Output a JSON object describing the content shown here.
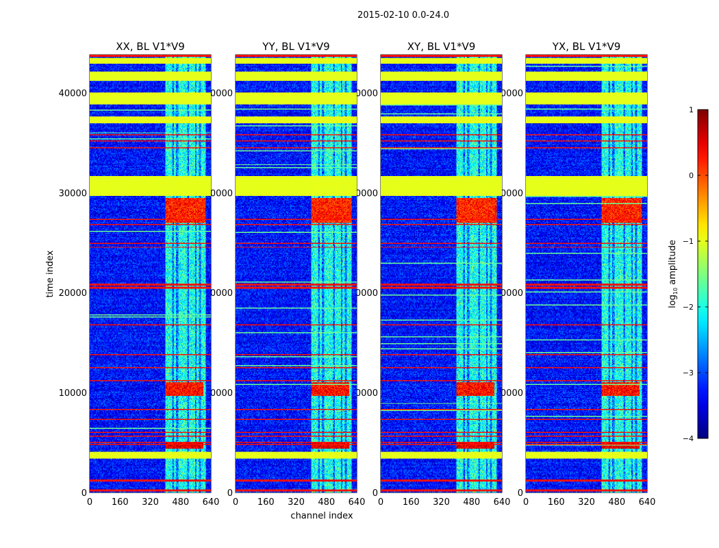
{
  "suptitle": "2015-02-10 0.0-24.0",
  "chart_data": {
    "type": "heatmap",
    "colormap": "jet",
    "panels": [
      {
        "title": "XX, BL V1*V9",
        "seed": 11
      },
      {
        "title": "YY, BL V1*V9",
        "seed": 23
      },
      {
        "title": "XY, BL V1*V9",
        "seed": 37
      },
      {
        "title": "YX, BL V1*V9",
        "seed": 51
      }
    ],
    "xlabel": "channel index",
    "ylabel": "time index",
    "xlim": [
      0,
      640
    ],
    "ylim": [
      0,
      43800
    ],
    "xticks": [
      "0",
      "160",
      "320",
      "480",
      "640"
    ],
    "xtick_values": [
      0,
      160,
      320,
      480,
      640
    ],
    "yticks": [
      "0",
      "10000",
      "20000",
      "30000",
      "40000"
    ],
    "ytick_values": [
      0,
      10000,
      20000,
      30000,
      40000
    ],
    "background_level": -3.3,
    "rfi_channels": [
      400,
      610
    ],
    "rfi_level": -2.0,
    "rfi_stripe_channels": [
      440,
      462,
      520,
      560,
      582
    ],
    "flagged_bands": [
      {
        "t": [
          42950,
          43500
        ],
        "level": -1.0
      },
      {
        "t": [
          41230,
          42130
        ],
        "level": -1.0
      },
      {
        "t": [
          38830,
          40000
        ],
        "level": -1.0
      },
      {
        "t": [
          36980,
          37670
        ],
        "level": -1.0
      },
      {
        "t": [
          29640,
          31630
        ],
        "level": -1.0
      },
      {
        "t": [
          3360,
          4050
        ],
        "level": -1.0
      }
    ],
    "strong_rfi": [
      {
        "t": [
          27000,
          29500
        ],
        "c": [
          400,
          620
        ],
        "level": 0.2
      },
      {
        "t": [
          9700,
          11000
        ],
        "c": [
          400,
          600
        ],
        "level": 0.3
      },
      {
        "t": [
          4400,
          5000
        ],
        "c": [
          380,
          600
        ],
        "level": 0.5
      }
    ],
    "hot_rows": [
      43700,
      35200,
      35800,
      34500,
      27300,
      26800,
      24900,
      24500,
      20800,
      20500,
      16800,
      13800,
      12500,
      11200,
      8300,
      7300,
      6000,
      5600,
      5000,
      4800,
      1200,
      200
    ],
    "hot_row_level": 0.3,
    "colorbar": {
      "label": "log10 amplitude",
      "range": [
        -4,
        1
      ],
      "ticks": [
        "1",
        "0",
        "−1",
        "−2",
        "−3",
        "−4"
      ],
      "tick_values": [
        1,
        0,
        -1,
        -2,
        -3,
        -4
      ]
    }
  }
}
